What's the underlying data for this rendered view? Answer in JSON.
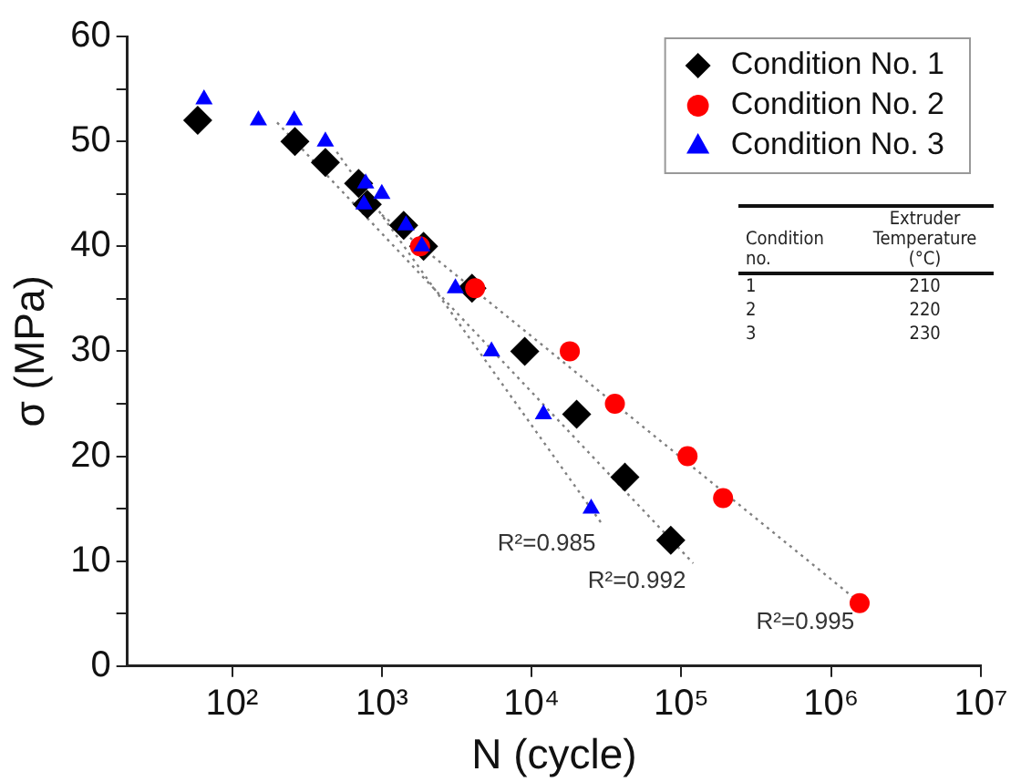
{
  "chart_data": {
    "type": "scatter",
    "xlabel": "N (cycle)",
    "ylabel": "σ (MPa)",
    "log": "x",
    "xlim": [
      20,
      10000000
    ],
    "xticks": [
      {
        "value": 100,
        "label": "10²"
      },
      {
        "value": 1000,
        "label": "10³"
      },
      {
        "value": 10000,
        "label": "10⁴"
      },
      {
        "value": 100000,
        "label": "10⁵"
      },
      {
        "value": 1000000,
        "label": "10⁶"
      },
      {
        "value": 10000000,
        "label": "10⁷"
      }
    ],
    "ylim": [
      0,
      60
    ],
    "yticks": [
      0,
      {
        "value": 5,
        "label": null
      },
      10,
      {
        "value": 15,
        "label": null
      },
      20,
      {
        "value": 25,
        "label": null
      },
      30,
      {
        "value": 35,
        "label": null
      },
      40,
      {
        "value": 45,
        "label": null
      },
      50,
      {
        "value": 55,
        "label": null
      },
      60
    ],
    "grid": false,
    "legend": "top right",
    "series": [
      {
        "type": "line",
        "color": "#808080",
        "marker": "none",
        "line_style": "dotted",
        "x": [
          500,
          30000
        ],
        "values": [
          49,
          13.4
        ]
      },
      {
        "type": "line",
        "color": "#808080",
        "marker": "none",
        "line_style": "dotted",
        "x": [
          200,
          120000
        ],
        "values": [
          51.8,
          9.8
        ]
      },
      {
        "type": "line",
        "color": "#808080",
        "marker": "none",
        "line_style": "dotted",
        "x": [
          1000,
          1600000
        ],
        "values": [
          43,
          5.9
        ]
      },
      {
        "name": "Condition No. 1",
        "color": "#000000",
        "marker": "diamond",
        "x": [
          59,
          263,
          420,
          700,
          800,
          1400,
          1900,
          4000,
          9000,
          20000,
          42000,
          85000
        ],
        "values": [
          52,
          50,
          48,
          46,
          44,
          42,
          40,
          36,
          30,
          24,
          18,
          12
        ]
      },
      {
        "name": "Condition No. 2",
        "color": "#ff0000",
        "marker": "circle",
        "x": [
          1800,
          4200,
          18000,
          36000,
          110000,
          190000,
          1550000
        ],
        "values": [
          40,
          36,
          30,
          25,
          20,
          16,
          6
        ]
      },
      {
        "name": "Condition No. 3",
        "color": "#0000ff",
        "marker": "triangle",
        "x": [
          65,
          150,
          260,
          420,
          780,
          760,
          1000,
          1450,
          1850,
          3100,
          5400,
          12000,
          25000
        ],
        "values": [
          54,
          52,
          52,
          50,
          46,
          44,
          45,
          42,
          40,
          36,
          30,
          24,
          15
        ]
      }
    ],
    "annotations": [
      "R²=0.985",
      "R²=0.992",
      "R²=0.995",
      "Condition no.",
      "Extruder Temperature (°C)",
      "1",
      "210",
      "2",
      "220",
      "3",
      "230"
    ]
  }
}
